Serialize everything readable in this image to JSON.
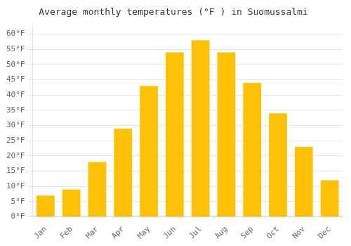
{
  "chart_data": {
    "type": "bar",
    "title": "Average monthly temperatures (°F ) in Suomussalmi",
    "categories": [
      "Jan",
      "Feb",
      "Mar",
      "Apr",
      "May",
      "Jun",
      "Jul",
      "Aug",
      "Sep",
      "Oct",
      "Nov",
      "Dec"
    ],
    "values": [
      7,
      9,
      18,
      29,
      43,
      54,
      58,
      54,
      44,
      34,
      23,
      12
    ],
    "color": "#FFC107",
    "ylim": [
      0,
      63
    ],
    "yticks": [
      {
        "value": 0,
        "label": "0°F"
      },
      {
        "value": 5,
        "label": "5°F"
      },
      {
        "value": 10,
        "label": "10°F"
      },
      {
        "value": 15,
        "label": "15°F"
      },
      {
        "value": 20,
        "label": "20°F"
      },
      {
        "value": 25,
        "label": "25°F"
      },
      {
        "value": 30,
        "label": "30°F"
      },
      {
        "value": 35,
        "label": "35°F"
      },
      {
        "value": 40,
        "label": "40°F"
      },
      {
        "value": 45,
        "label": "45°F"
      },
      {
        "value": 50,
        "label": "50°F"
      },
      {
        "value": 55,
        "label": "55°F"
      },
      {
        "value": 60,
        "label": "60°F"
      }
    ],
    "grid": true
  }
}
